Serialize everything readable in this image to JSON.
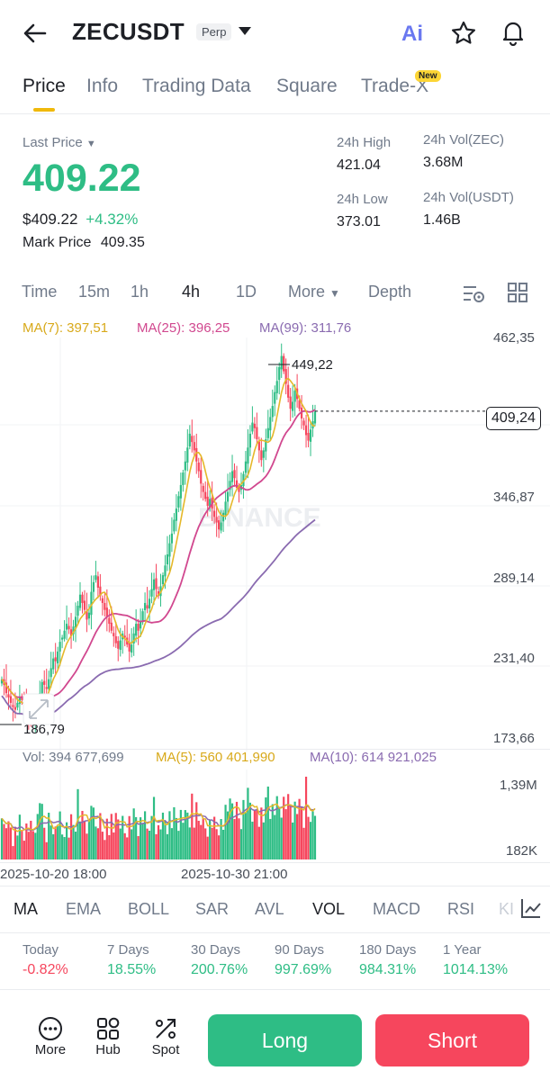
{
  "header": {
    "symbol": "ZECUSDT",
    "badge": "Perp",
    "ai_label": "Ai"
  },
  "tabs": [
    "Price",
    "Info",
    "Trading Data",
    "Square",
    "Trade-X"
  ],
  "tab_new_badge": "New",
  "stats": {
    "last_price_label": "Last Price",
    "last_price": "409.22",
    "usd_price": "$409.22",
    "change": "+4.32%",
    "mark_price_label": "Mark Price",
    "mark_price": "409.35",
    "high_label": "24h High",
    "high": "421.04",
    "low_label": "24h Low",
    "low": "373.01",
    "vol_zec_label": "24h Vol(ZEC)",
    "vol_zec": "3.68M",
    "vol_usdt_label": "24h Vol(USDT)",
    "vol_usdt": "1.46B"
  },
  "timeframes": [
    "Time",
    "15m",
    "1h",
    "4h",
    "1D",
    "More",
    "Depth"
  ],
  "ma_legend": {
    "ma7": "MA(7): 397,51",
    "ma25": "MA(25): 396,25",
    "ma99": "MA(99): 311,76"
  },
  "y_axis": [
    "462,35",
    "346,87",
    "289,14",
    "231,40",
    "173,66"
  ],
  "current_price_tag": "409,24",
  "high_marker": "449,22",
  "low_marker": "186,79",
  "watermark": "BINANCE",
  "volume_legend": {
    "vol": "Vol: 394 677,699",
    "ma5": "MA(5): 560 401,990",
    "ma10": "MA(10): 614 921,025"
  },
  "volume_axis": [
    "1,39M",
    "182K"
  ],
  "x_axis": [
    "2025-10-20 18:00",
    "2025-10-30 21:00"
  ],
  "indicators": [
    "MA",
    "EMA",
    "BOLL",
    "SAR",
    "AVL",
    "VOL",
    "MACD",
    "RSI",
    "KI"
  ],
  "changes": [
    {
      "label": "Today",
      "value": "-0.82%"
    },
    {
      "label": "7 Days",
      "value": "18.55%"
    },
    {
      "label": "30 Days",
      "value": "200.76%"
    },
    {
      "label": "90 Days",
      "value": "997.69%"
    },
    {
      "label": "180 Days",
      "value": "984.31%"
    },
    {
      "label": "1 Year",
      "value": "1014.13%"
    }
  ],
  "bottom_bar": {
    "more": "More",
    "hub": "Hub",
    "spot": "Spot",
    "long": "Long",
    "short": "Short"
  },
  "colors": {
    "up": "#2ebd85",
    "down": "#f6465d",
    "ma7": "#e5b82a",
    "ma25": "#d1488f",
    "ma99": "#7f5fa8",
    "accent": "#f0b90b"
  },
  "chart_data": {
    "type": "candlestick",
    "y_range": [
      173.66,
      462.35
    ],
    "current": 409.24,
    "high": 449.22,
    "low": 186.79,
    "closes": [
      216,
      212,
      206,
      203,
      199,
      196,
      194,
      199,
      203,
      201,
      196,
      193,
      190,
      188,
      187,
      192,
      199,
      206,
      214,
      212,
      209,
      216,
      224,
      231,
      229,
      236,
      243,
      246,
      251,
      256,
      252,
      247,
      254,
      261,
      269,
      277,
      271,
      266,
      259,
      264,
      279,
      286,
      291,
      282,
      276,
      271,
      266,
      261,
      256,
      251,
      247,
      242,
      238,
      244,
      249,
      246,
      241,
      236,
      241,
      249,
      256,
      251,
      258,
      265,
      271,
      267,
      274,
      281,
      288,
      281,
      276,
      283,
      291,
      298,
      306,
      314,
      321,
      331,
      339,
      348,
      356,
      365,
      373,
      383,
      393,
      387,
      381,
      373,
      366,
      357,
      351,
      346,
      341,
      346,
      339,
      333,
      329,
      324,
      329,
      336,
      344,
      351,
      359,
      366,
      361,
      354,
      351,
      356,
      364,
      373,
      383,
      393,
      401,
      397,
      389,
      381,
      374,
      381,
      389,
      397,
      405,
      413,
      423,
      431,
      441,
      449,
      438,
      429,
      419,
      411,
      416,
      424,
      418,
      411,
      404,
      399,
      392,
      388,
      396,
      402,
      409
    ]
  }
}
